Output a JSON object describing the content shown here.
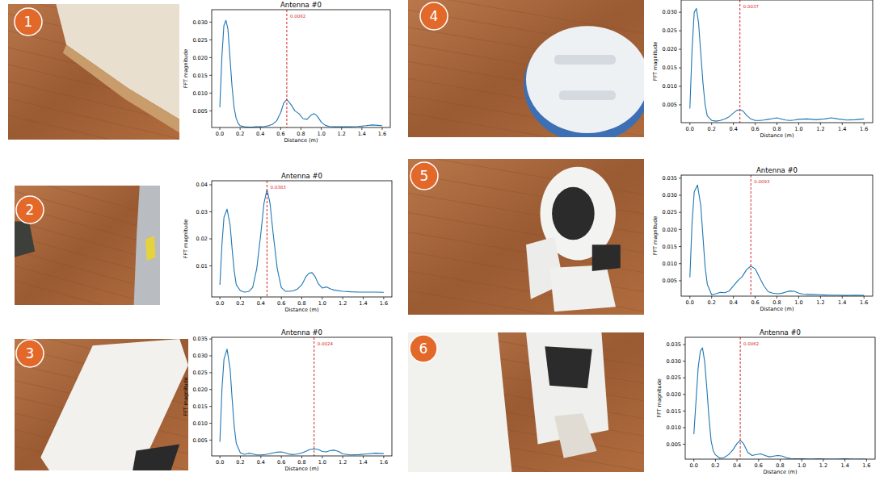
{
  "panels": [
    "1",
    "2",
    "3",
    "4",
    "5",
    "6"
  ],
  "chart_data": [
    {
      "type": "line",
      "title": "Antenna #0",
      "x_label": "Distance (m)",
      "y_label": "FFT magnitude",
      "color": "#1f77b4",
      "xlim": [
        -0.08,
        1.68
      ],
      "ylim": [
        0.0003,
        0.0335
      ],
      "xticks": [
        {
          "value": 0,
          "label": "0.0"
        },
        0.2,
        0.4,
        0.6,
        0.8,
        {
          "value": 1,
          "label": "1.0"
        },
        1.2,
        1.4,
        1.6
      ],
      "yticks": [
        0.005,
        {
          "value": 0.01,
          "label": "0.010"
        },
        0.015,
        {
          "value": 0.02,
          "label": "0.020"
        },
        0.025,
        {
          "value": 0.03,
          "label": "0.030"
        }
      ],
      "annotations": [
        {
          "x": 0.66,
          "value": 0.0082
        }
      ],
      "x": [
        0,
        0.02,
        0.04,
        0.06,
        0.08,
        0.1,
        0.12,
        0.14,
        0.16,
        0.18,
        0.2,
        0.24,
        0.28,
        0.32,
        0.36,
        0.4,
        0.44,
        0.48,
        0.52,
        0.56,
        0.6,
        0.63,
        0.66,
        0.7,
        0.74,
        0.78,
        0.82,
        0.86,
        0.9,
        0.93,
        0.96,
        1.0,
        1.04,
        1.08,
        1.12,
        1.2,
        1.28,
        1.36,
        1.44,
        1.5,
        1.56,
        1.6
      ],
      "values": [
        0.006,
        0.02,
        0.029,
        0.0305,
        0.028,
        0.02,
        0.012,
        0.006,
        0.003,
        0.0015,
        0.0008,
        0.0005,
        0.0004,
        0.0004,
        0.0005,
        0.0005,
        0.0006,
        0.0008,
        0.0012,
        0.0022,
        0.0045,
        0.0072,
        0.0082,
        0.0068,
        0.005,
        0.0042,
        0.0028,
        0.0026,
        0.0038,
        0.0042,
        0.0035,
        0.0018,
        0.0009,
        0.0006,
        0.0005,
        0.0005,
        0.0005,
        0.0006,
        0.0008,
        0.001,
        0.0009,
        0.0008
      ]
    },
    {
      "type": "line",
      "title": "Antenna #0",
      "x_label": "Distance (m)",
      "y_label": "FFT magnitude",
      "color": "#1f77b4",
      "xlim": [
        -0.08,
        1.68
      ],
      "ylim": [
        -0.0015,
        0.0415
      ],
      "xticks": [
        {
          "value": 0,
          "label": "0.0"
        },
        0.2,
        0.4,
        0.6,
        0.8,
        {
          "value": 1,
          "label": "1.0"
        },
        1.2,
        1.4,
        1.6
      ],
      "yticks": [
        0.01,
        0.02,
        0.03,
        0.04
      ],
      "annotations": [
        {
          "x": 0.46,
          "value": 0.0383
        }
      ],
      "x": [
        0,
        0.02,
        0.04,
        0.07,
        0.1,
        0.12,
        0.14,
        0.16,
        0.2,
        0.24,
        0.28,
        0.32,
        0.36,
        0.4,
        0.43,
        0.46,
        0.49,
        0.52,
        0.56,
        0.6,
        0.64,
        0.68,
        0.72,
        0.76,
        0.8,
        0.84,
        0.87,
        0.9,
        0.93,
        0.96,
        1.0,
        1.04,
        1.08,
        1.12,
        1.2,
        1.28,
        1.36,
        1.44,
        1.52,
        1.6
      ],
      "values": [
        0.003,
        0.018,
        0.028,
        0.031,
        0.025,
        0.016,
        0.008,
        0.003,
        0.0008,
        0.0003,
        0.0005,
        0.002,
        0.009,
        0.022,
        0.033,
        0.0383,
        0.033,
        0.022,
        0.009,
        0.002,
        0.0006,
        0.0006,
        0.0008,
        0.0015,
        0.003,
        0.006,
        0.0073,
        0.0075,
        0.006,
        0.0035,
        0.0018,
        0.0022,
        0.0015,
        0.001,
        0.0006,
        0.0004,
        0.0003,
        0.0003,
        0.0003,
        0.0002
      ]
    },
    {
      "type": "line",
      "title": "Antenna #0",
      "x_label": "Distance (m)",
      "y_label": "FFT magnitude",
      "color": "#1f77b4",
      "xlim": [
        -0.08,
        1.68
      ],
      "ylim": [
        0.0003,
        0.0355
      ],
      "xticks": [
        {
          "value": 0,
          "label": "0.0"
        },
        0.2,
        0.4,
        0.6,
        0.8,
        {
          "value": 1,
          "label": "1.0"
        },
        1.2,
        1.4,
        1.6
      ],
      "yticks": [
        0.005,
        {
          "value": 0.01,
          "label": "0.010"
        },
        0.015,
        {
          "value": 0.02,
          "label": "0.020"
        },
        0.025,
        {
          "value": 0.03,
          "label": "0.030"
        },
        0.035
      ],
      "annotations": [
        {
          "x": 0.92,
          "value": 0.0024
        }
      ],
      "x": [
        0,
        0.02,
        0.04,
        0.07,
        0.1,
        0.12,
        0.14,
        0.16,
        0.2,
        0.24,
        0.28,
        0.32,
        0.36,
        0.4,
        0.44,
        0.48,
        0.52,
        0.56,
        0.6,
        0.64,
        0.68,
        0.72,
        0.76,
        0.8,
        0.84,
        0.88,
        0.92,
        0.96,
        1.0,
        1.04,
        1.08,
        1.12,
        1.16,
        1.2,
        1.28,
        1.36,
        1.44,
        1.52,
        1.6
      ],
      "values": [
        0.0045,
        0.02,
        0.029,
        0.032,
        0.026,
        0.017,
        0.009,
        0.004,
        0.0012,
        0.0008,
        0.0011,
        0.0009,
        0.0006,
        0.0006,
        0.0007,
        0.0009,
        0.0012,
        0.0014,
        0.0015,
        0.0012,
        0.0008,
        0.0007,
        0.0009,
        0.0012,
        0.0017,
        0.0022,
        0.0024,
        0.0022,
        0.0016,
        0.0015,
        0.0019,
        0.002,
        0.0016,
        0.0009,
        0.0006,
        0.0007,
        0.0009,
        0.0011,
        0.001
      ]
    },
    {
      "type": "line",
      "x_label": "Distance (m)",
      "y_label": "FFT magnitude",
      "color": "#1f77b4",
      "xlim": [
        -0.08,
        1.68
      ],
      "ylim": [
        0.0002,
        0.0333
      ],
      "xticks": [
        {
          "value": 0,
          "label": "0.0"
        },
        0.2,
        0.4,
        0.6,
        0.8,
        {
          "value": 1,
          "label": "1.0"
        },
        1.2,
        1.4,
        1.6
      ],
      "yticks": [
        0.005,
        {
          "value": 0.01,
          "label": "0.010"
        },
        0.015,
        {
          "value": 0.02,
          "label": "0.020"
        },
        0.025,
        {
          "value": 0.03,
          "label": "0.030"
        }
      ],
      "annotations": [
        {
          "x": 0.46,
          "value": 0.0037
        }
      ],
      "x": [
        0,
        0.02,
        0.04,
        0.06,
        0.08,
        0.1,
        0.12,
        0.14,
        0.16,
        0.2,
        0.24,
        0.28,
        0.32,
        0.36,
        0.4,
        0.43,
        0.46,
        0.49,
        0.52,
        0.56,
        0.6,
        0.64,
        0.68,
        0.72,
        0.76,
        0.8,
        0.84,
        0.88,
        0.92,
        0.96,
        1.0,
        1.08,
        1.16,
        1.24,
        1.3,
        1.36,
        1.44,
        1.52,
        1.6
      ],
      "values": [
        0.004,
        0.02,
        0.03,
        0.031,
        0.027,
        0.019,
        0.011,
        0.005,
        0.002,
        0.0008,
        0.0006,
        0.0008,
        0.0012,
        0.0018,
        0.0028,
        0.0035,
        0.0037,
        0.0033,
        0.0022,
        0.0012,
        0.0008,
        0.0008,
        0.0009,
        0.0011,
        0.0013,
        0.0015,
        0.0012,
        0.0009,
        0.0008,
        0.0009,
        0.0011,
        0.0012,
        0.001,
        0.0012,
        0.0015,
        0.0012,
        0.0009,
        0.001,
        0.0012
      ]
    },
    {
      "type": "line",
      "title": "Antenna #0",
      "x_label": "Distance (m)",
      "y_label": "FFT magnitude",
      "color": "#1f77b4",
      "xlim": [
        -0.08,
        1.68
      ],
      "ylim": [
        0.0005,
        0.0359
      ],
      "xticks": [
        {
          "value": 0,
          "label": "0.0"
        },
        0.2,
        0.4,
        0.6,
        0.8,
        {
          "value": 1,
          "label": "1.0"
        },
        1.2,
        1.4,
        1.6
      ],
      "yticks": [
        0.005,
        {
          "value": 0.01,
          "label": "0.010"
        },
        0.015,
        {
          "value": 0.02,
          "label": "0.020"
        },
        0.025,
        {
          "value": 0.03,
          "label": "0.030"
        },
        0.035
      ],
      "annotations": [
        {
          "x": 0.56,
          "value": 0.0093
        }
      ],
      "x": [
        0,
        0.02,
        0.04,
        0.07,
        0.1,
        0.12,
        0.14,
        0.16,
        0.2,
        0.24,
        0.28,
        0.32,
        0.36,
        0.4,
        0.44,
        0.48,
        0.52,
        0.56,
        0.6,
        0.64,
        0.68,
        0.72,
        0.76,
        0.8,
        0.84,
        0.88,
        0.92,
        0.96,
        1.0,
        1.04,
        1.08,
        1.12,
        1.2,
        1.28,
        1.36,
        1.44,
        1.52,
        1.6
      ],
      "values": [
        0.006,
        0.022,
        0.031,
        0.033,
        0.027,
        0.018,
        0.009,
        0.004,
        0.0009,
        0.0012,
        0.0016,
        0.0015,
        0.002,
        0.0035,
        0.005,
        0.0062,
        0.0082,
        0.0093,
        0.0085,
        0.006,
        0.0035,
        0.0018,
        0.0014,
        0.0012,
        0.0013,
        0.0017,
        0.002,
        0.0019,
        0.0014,
        0.0011,
        0.001,
        0.001,
        0.0009,
        0.0008,
        0.0008,
        0.0007,
        0.0008,
        0.0007
      ]
    },
    {
      "type": "line",
      "title": "Antenna #0",
      "x_label": "Distance (m)",
      "y_label": "FFT magnitude",
      "color": "#1f77b4",
      "xlim": [
        -0.08,
        1.68
      ],
      "ylim": [
        0.0005,
        0.0372
      ],
      "xticks": [
        {
          "value": 0,
          "label": "0.0"
        },
        0.2,
        0.4,
        0.6,
        0.8,
        {
          "value": 1,
          "label": "1.0"
        },
        1.2,
        1.4,
        1.6
      ],
      "yticks": [
        0.005,
        {
          "value": 0.01,
          "label": "0.010"
        },
        0.015,
        {
          "value": 0.02,
          "label": "0.020"
        },
        0.025,
        {
          "value": 0.03,
          "label": "0.030"
        },
        0.035
      ],
      "annotations": [
        {
          "x": 0.43,
          "value": 0.0062
        }
      ],
      "x": [
        0,
        0.02,
        0.04,
        0.06,
        0.08,
        0.1,
        0.12,
        0.14,
        0.16,
        0.18,
        0.2,
        0.24,
        0.28,
        0.32,
        0.36,
        0.4,
        0.43,
        0.46,
        0.5,
        0.54,
        0.58,
        0.62,
        0.66,
        0.7,
        0.74,
        0.78,
        0.82,
        0.86,
        0.9,
        0.96,
        1.0,
        1.08,
        1.16,
        1.24,
        1.32,
        1.4,
        1.48,
        1.56,
        1.6
      ],
      "values": [
        0.008,
        0.018,
        0.028,
        0.033,
        0.034,
        0.03,
        0.022,
        0.013,
        0.006,
        0.003,
        0.0018,
        0.0008,
        0.001,
        0.0018,
        0.0032,
        0.0052,
        0.0062,
        0.0052,
        0.0025,
        0.0016,
        0.0019,
        0.0021,
        0.0016,
        0.0012,
        0.0014,
        0.0016,
        0.0014,
        0.0009,
        0.0007,
        0.0006,
        0.0006,
        0.0005,
        0.0006,
        0.0005,
        0.0005,
        0.0006,
        0.0005,
        0.0005,
        0.0005
      ]
    }
  ]
}
